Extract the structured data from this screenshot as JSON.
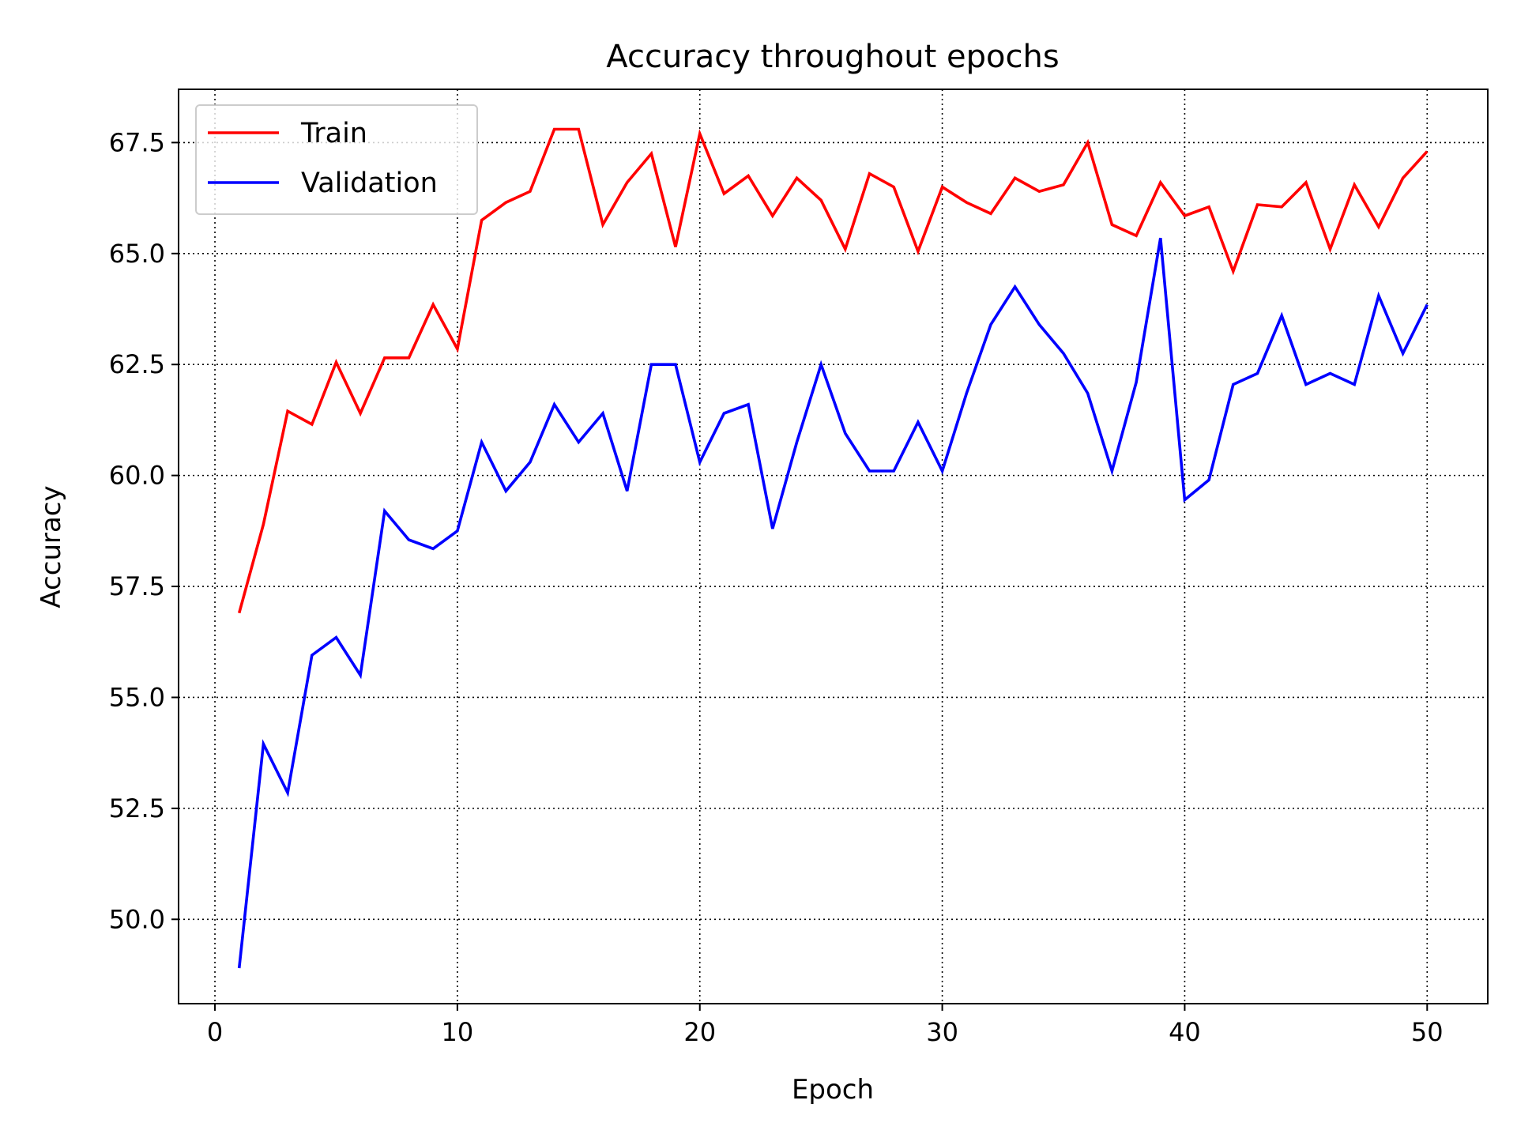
{
  "chart_data": {
    "type": "line",
    "title": "Accuracy throughout epochs",
    "xlabel": "Epoch",
    "ylabel": "Accuracy",
    "xlim": [
      -1.5,
      52.5
    ],
    "ylim": [
      48.1,
      68.7
    ],
    "xticks": [
      0,
      10,
      20,
      30,
      40,
      50
    ],
    "yticks": [
      50.0,
      52.5,
      55.0,
      57.5,
      60.0,
      62.5,
      65.0,
      67.5
    ],
    "xtick_labels": [
      "0",
      "10",
      "20",
      "30",
      "40",
      "50"
    ],
    "ytick_labels": [
      "50.0",
      "52.5",
      "55.0",
      "57.5",
      "60.0",
      "62.5",
      "65.0",
      "67.5"
    ],
    "grid": true,
    "legend_position": "top-left",
    "x": [
      1,
      2,
      3,
      4,
      5,
      6,
      7,
      8,
      9,
      10,
      11,
      12,
      13,
      14,
      15,
      16,
      17,
      18,
      19,
      20,
      21,
      22,
      23,
      24,
      25,
      26,
      27,
      28,
      29,
      30,
      31,
      32,
      33,
      34,
      35,
      36,
      37,
      38,
      39,
      40,
      41,
      42,
      43,
      44,
      45,
      46,
      47,
      48,
      49,
      50
    ],
    "series": [
      {
        "name": "Train",
        "color": "#ff0000",
        "values": [
          56.9,
          58.9,
          61.45,
          61.15,
          62.55,
          61.4,
          62.65,
          62.65,
          63.85,
          62.85,
          65.75,
          66.15,
          66.4,
          67.8,
          67.8,
          65.65,
          66.6,
          67.25,
          65.15,
          67.7,
          66.35,
          66.75,
          65.85,
          66.7,
          66.2,
          65.1,
          66.8,
          66.5,
          65.05,
          66.5,
          66.15,
          65.9,
          66.7,
          66.4,
          66.55,
          67.5,
          65.65,
          65.4,
          66.6,
          65.85,
          66.05,
          64.6,
          66.1,
          66.05,
          66.6,
          65.1,
          66.55,
          65.6,
          66.7,
          67.3
        ]
      },
      {
        "name": "Validation",
        "color": "#0000ff",
        "values": [
          48.9,
          53.95,
          52.85,
          55.95,
          56.35,
          55.5,
          59.2,
          58.55,
          58.35,
          58.75,
          60.75,
          59.65,
          60.3,
          61.6,
          60.75,
          61.4,
          59.65,
          62.5,
          62.5,
          60.3,
          61.4,
          61.6,
          58.8,
          60.75,
          62.5,
          60.95,
          60.1,
          60.1,
          61.2,
          60.1,
          61.85,
          63.4,
          64.25,
          63.4,
          62.75,
          61.85,
          60.1,
          62.1,
          65.35,
          59.45,
          59.9,
          62.05,
          62.3,
          63.6,
          62.05,
          62.3,
          62.05,
          64.05,
          62.75,
          63.85
        ]
      }
    ]
  }
}
